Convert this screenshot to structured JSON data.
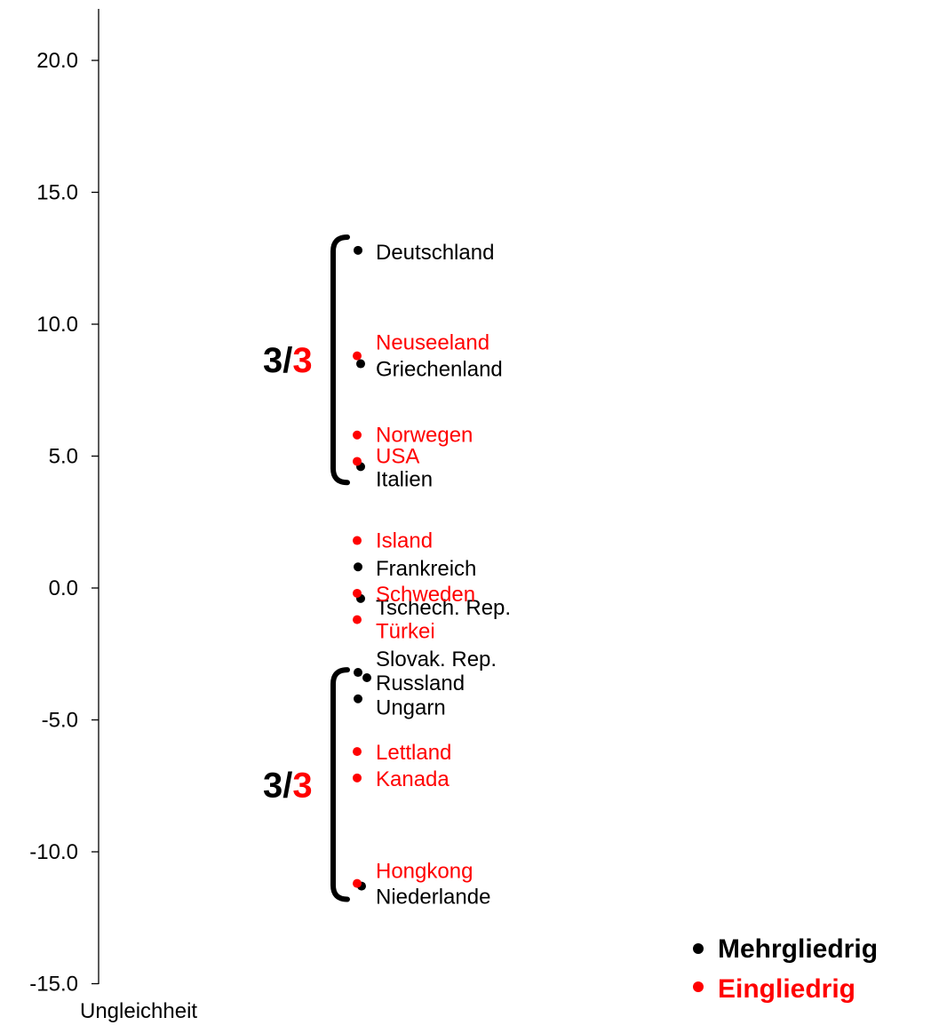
{
  "colors": {
    "mehrgliedrig": "#000000",
    "eingliedrig": "#ff0000"
  },
  "chart_data": {
    "type": "scatter",
    "title": "",
    "xlabel": "Ungleichheit",
    "ylabel": "",
    "ylim": [
      -15,
      22
    ],
    "yticks": [
      "20.0",
      "15.0",
      "10.0",
      "5.0",
      "0.0",
      "-5.0",
      "-10.0",
      "-15.0"
    ],
    "grid": false,
    "legend_position": "bottom-right",
    "series": [
      {
        "name": "Mehrgliedrig",
        "color": "#000000",
        "points": [
          {
            "label": "Deutschland",
            "y": 12.8
          },
          {
            "label": "Griechenland",
            "y": 8.5
          },
          {
            "label": "Italien",
            "y": 4.6
          },
          {
            "label": "Frankreich",
            "y": 0.8
          },
          {
            "label": "Tschech. Rep.",
            "y": -0.4
          },
          {
            "label": "Slovak. Rep.",
            "y": -3.2
          },
          {
            "label": "Russland",
            "y": -3.4
          },
          {
            "label": "Ungarn",
            "y": -4.2
          },
          {
            "label": "Niederlande",
            "y": -11.3
          }
        ]
      },
      {
        "name": "Eingliedrig",
        "color": "#ff0000",
        "points": [
          {
            "label": "Neuseeland",
            "y": 8.8
          },
          {
            "label": "Norwegen",
            "y": 5.8
          },
          {
            "label": "USA",
            "y": 4.8
          },
          {
            "label": "Island",
            "y": 1.8
          },
          {
            "label": "Schweden",
            "y": -0.2
          },
          {
            "label": "Türkei",
            "y": -1.2
          },
          {
            "label": "Lettland",
            "y": -6.2
          },
          {
            "label": "Kanada",
            "y": -7.2
          },
          {
            "label": "Hongkong",
            "y": -11.2
          }
        ]
      }
    ],
    "annotations": [
      {
        "group": "top",
        "y_from": 4.0,
        "y_to": 13.3,
        "text_a": "3/",
        "text_b": "3"
      },
      {
        "group": "bottom",
        "y_from": -11.8,
        "y_to": -3.1,
        "text_a": "3/",
        "text_b": "3"
      }
    ],
    "legend": [
      {
        "label": "Mehrgliedrig",
        "color": "#000000"
      },
      {
        "label": "Eingliedrig",
        "color": "#ff0000"
      }
    ]
  }
}
